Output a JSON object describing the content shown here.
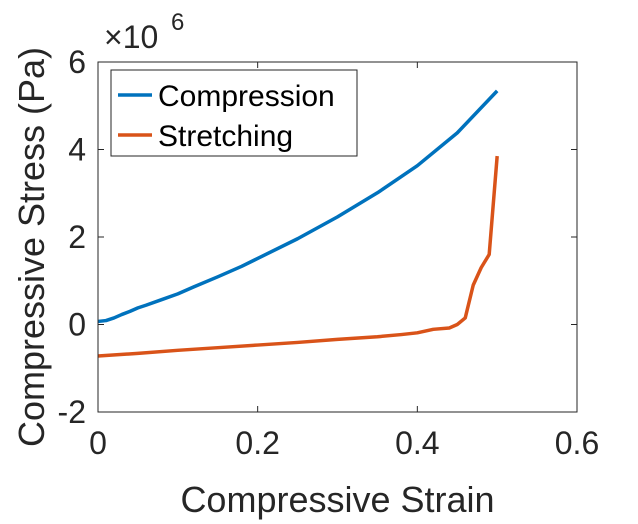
{
  "chart_data": {
    "type": "line",
    "xlabel": "Compressive Strain",
    "ylabel": "Compressive Stress (Pa)",
    "xlim": [
      0,
      0.6
    ],
    "ylim": [
      -2000000,
      6000000
    ],
    "x_ticks": [
      0,
      0.2,
      0.4,
      0.6
    ],
    "x_tick_labels": [
      "0",
      "0.2",
      "0.4",
      "0.6"
    ],
    "y_ticks": [
      -2000000,
      0,
      2000000,
      4000000,
      6000000
    ],
    "y_tick_labels": [
      "-2",
      "0",
      "2",
      "4",
      "6"
    ],
    "y_exponent_label": "×10",
    "y_exponent_power": "6",
    "grid": false,
    "legend_position": "top-left",
    "series": [
      {
        "name": "Compression",
        "color": "#0072BD",
        "x": [
          0,
          0.01,
          0.02,
          0.03,
          0.04,
          0.05,
          0.06,
          0.08,
          0.1,
          0.12,
          0.15,
          0.18,
          0.2,
          0.25,
          0.3,
          0.35,
          0.4,
          0.45,
          0.5
        ],
        "y": [
          70000,
          90000,
          150000,
          230000,
          300000,
          380000,
          440000,
          570000,
          700000,
          860000,
          1090000,
          1330000,
          1510000,
          1960000,
          2460000,
          3010000,
          3630000,
          4380000,
          5340000
        ]
      },
      {
        "name": "Stretching",
        "color": "#D95319",
        "x": [
          0,
          0.05,
          0.1,
          0.15,
          0.2,
          0.25,
          0.3,
          0.35,
          0.38,
          0.4,
          0.42,
          0.44,
          0.45,
          0.46,
          0.47,
          0.48,
          0.49,
          0.5
        ],
        "y": [
          -720000,
          -660000,
          -590000,
          -530000,
          -470000,
          -410000,
          -340000,
          -280000,
          -230000,
          -190000,
          -110000,
          -80000,
          0,
          150000,
          900000,
          1300000,
          1600000,
          3850000
        ]
      }
    ]
  }
}
